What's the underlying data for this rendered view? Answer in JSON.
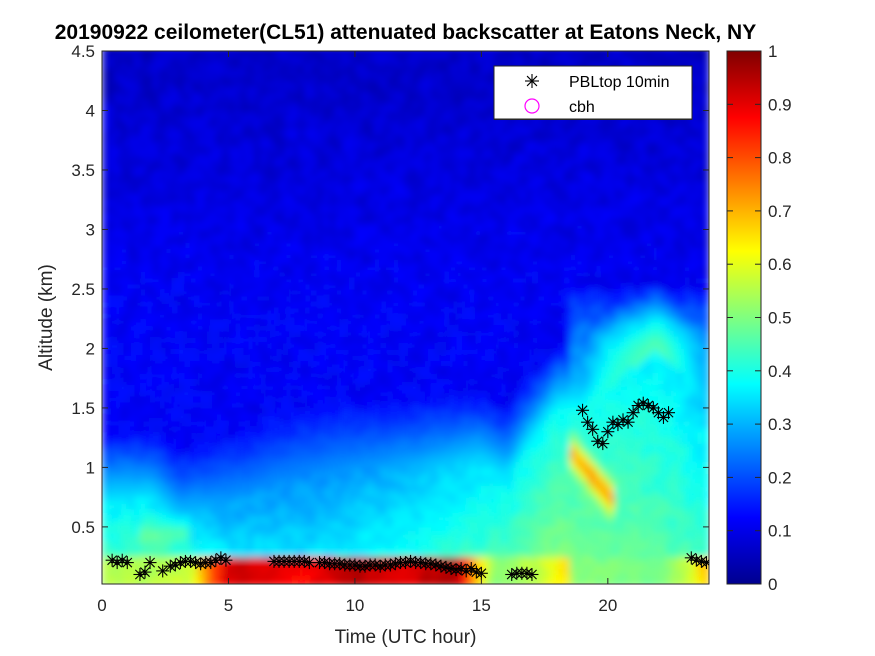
{
  "chart_data": {
    "type": "heatmap",
    "title": "20190922 ceilometer(CL51) attenuated backscatter at Eatons Neck, NY",
    "xlabel": "Time (UTC hour)",
    "ylabel": "Altitude (km)",
    "xlim": [
      0,
      24
    ],
    "ylim": [
      0.02,
      4.5
    ],
    "x_ticks": [
      0,
      5,
      10,
      15,
      20
    ],
    "y_ticks": [
      0.5,
      1,
      1.5,
      2,
      2.5,
      3,
      3.5,
      4,
      4.5
    ],
    "colorbar": {
      "colormap": "jet",
      "clim": [
        0,
        1
      ],
      "ticks": [
        0,
        0.1,
        0.2,
        0.3,
        0.4,
        0.5,
        0.6,
        0.7,
        0.8,
        0.9,
        1
      ]
    },
    "legend": {
      "location": "top-right",
      "entries": [
        {
          "label": "PBLtop 10min",
          "marker": "asterisk",
          "color": "#000000"
        },
        {
          "label": "cbh",
          "marker": "circle",
          "color": "#ff00ff"
        }
      ]
    },
    "series": [
      {
        "name": "PBLtop 10min",
        "points": [
          [
            0.4,
            0.22
          ],
          [
            0.6,
            0.2
          ],
          [
            0.8,
            0.22
          ],
          [
            1.0,
            0.2
          ],
          [
            1.5,
            0.1
          ],
          [
            1.7,
            0.12
          ],
          [
            1.9,
            0.2
          ],
          [
            2.4,
            0.13
          ],
          [
            2.7,
            0.17
          ],
          [
            2.9,
            0.18
          ],
          [
            3.1,
            0.2
          ],
          [
            3.3,
            0.21
          ],
          [
            3.5,
            0.21
          ],
          [
            3.7,
            0.2
          ],
          [
            3.9,
            0.19
          ],
          [
            4.1,
            0.2
          ],
          [
            4.3,
            0.2
          ],
          [
            4.5,
            0.22
          ],
          [
            4.7,
            0.24
          ],
          [
            4.9,
            0.22
          ],
          [
            6.8,
            0.21
          ],
          [
            7.0,
            0.21
          ],
          [
            7.2,
            0.21
          ],
          [
            7.4,
            0.21
          ],
          [
            7.6,
            0.21
          ],
          [
            7.8,
            0.21
          ],
          [
            8.0,
            0.21
          ],
          [
            8.2,
            0.2
          ],
          [
            8.6,
            0.2
          ],
          [
            8.8,
            0.2
          ],
          [
            9.0,
            0.19
          ],
          [
            9.2,
            0.19
          ],
          [
            9.4,
            0.19
          ],
          [
            9.6,
            0.18
          ],
          [
            9.8,
            0.18
          ],
          [
            10.0,
            0.18
          ],
          [
            10.2,
            0.17
          ],
          [
            10.4,
            0.17
          ],
          [
            10.6,
            0.18
          ],
          [
            10.8,
            0.18
          ],
          [
            11.0,
            0.17
          ],
          [
            11.2,
            0.18
          ],
          [
            11.4,
            0.18
          ],
          [
            11.6,
            0.19
          ],
          [
            11.8,
            0.2
          ],
          [
            12.0,
            0.2
          ],
          [
            12.2,
            0.21
          ],
          [
            12.4,
            0.2
          ],
          [
            12.6,
            0.2
          ],
          [
            12.8,
            0.19
          ],
          [
            13.0,
            0.19
          ],
          [
            13.2,
            0.18
          ],
          [
            13.4,
            0.17
          ],
          [
            13.6,
            0.16
          ],
          [
            13.8,
            0.15
          ],
          [
            14.0,
            0.14
          ],
          [
            14.2,
            0.15
          ],
          [
            14.4,
            0.13
          ],
          [
            14.6,
            0.15
          ],
          [
            14.8,
            0.12
          ],
          [
            15.0,
            0.11
          ],
          [
            16.2,
            0.1
          ],
          [
            16.4,
            0.11
          ],
          [
            16.6,
            0.11
          ],
          [
            16.8,
            0.11
          ],
          [
            17.0,
            0.1
          ],
          [
            19.0,
            1.48
          ],
          [
            19.2,
            1.38
          ],
          [
            19.4,
            1.32
          ],
          [
            19.6,
            1.22
          ],
          [
            19.8,
            1.2
          ],
          [
            20.0,
            1.3
          ],
          [
            20.2,
            1.38
          ],
          [
            20.4,
            1.36
          ],
          [
            20.6,
            1.4
          ],
          [
            20.8,
            1.38
          ],
          [
            21.0,
            1.46
          ],
          [
            21.2,
            1.52
          ],
          [
            21.4,
            1.54
          ],
          [
            21.6,
            1.52
          ],
          [
            21.8,
            1.5
          ],
          [
            22.0,
            1.46
          ],
          [
            22.2,
            1.42
          ],
          [
            22.4,
            1.46
          ],
          [
            23.3,
            0.24
          ],
          [
            23.5,
            0.22
          ],
          [
            23.7,
            0.21
          ],
          [
            23.9,
            0.2
          ]
        ]
      },
      {
        "name": "cbh",
        "points": []
      }
    ],
    "grid": false
  }
}
